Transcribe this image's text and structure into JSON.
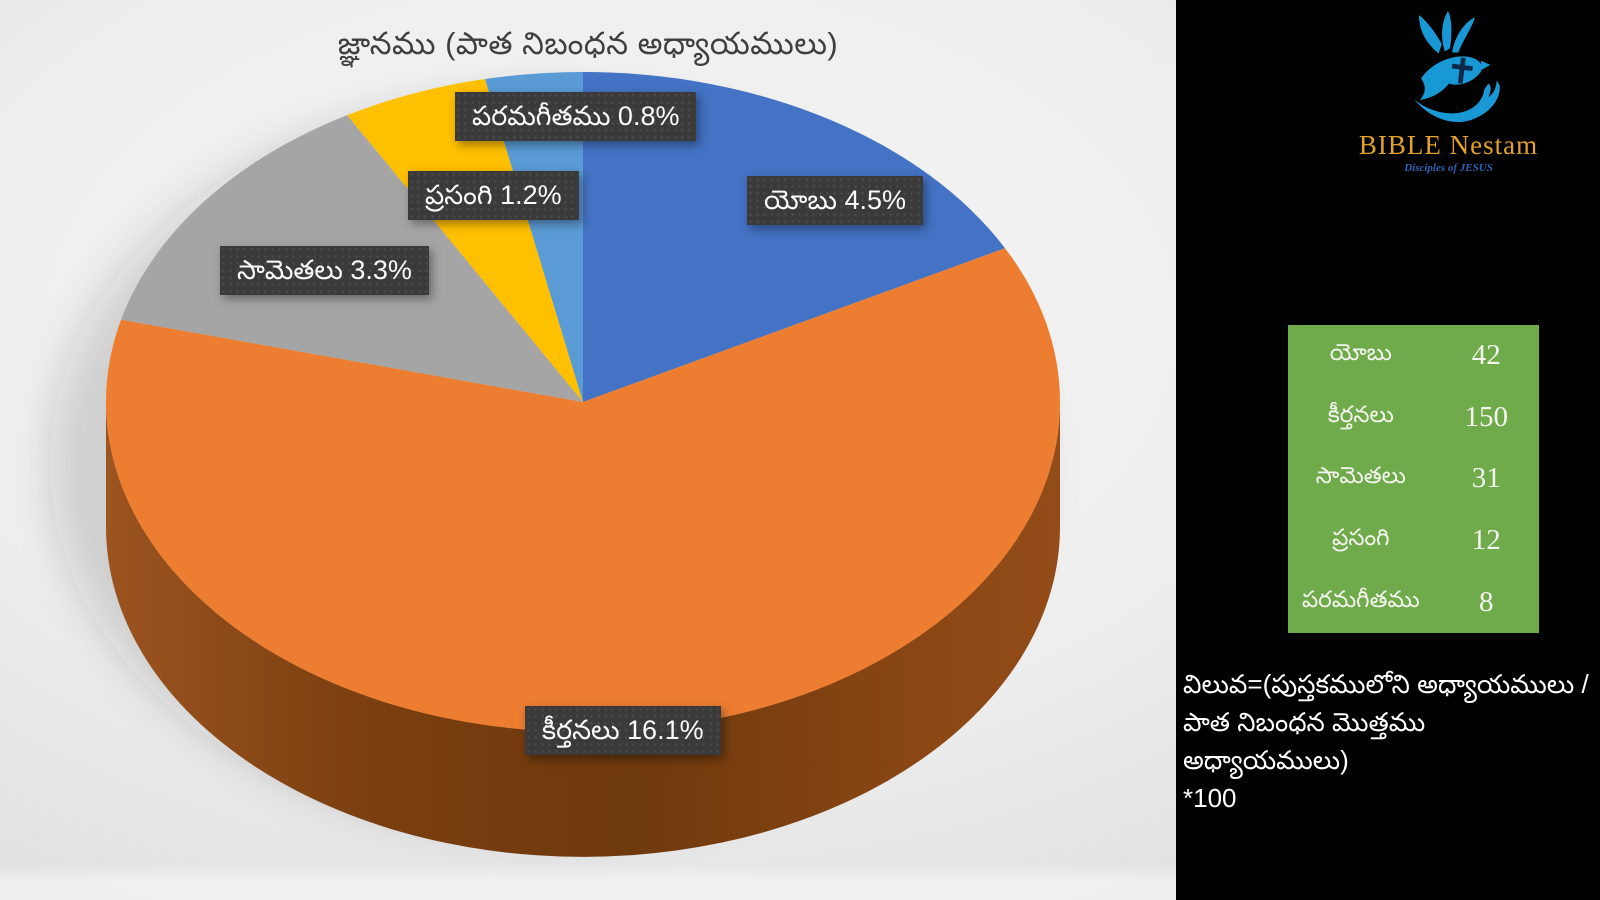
{
  "chart_data": {
    "type": "pie",
    "style": "3d",
    "title": "జ్ఞానము (పాత నిబంధన అధ్యాయములు)",
    "categories": [
      "యోబు",
      "కీర్తనలు",
      "సామెతలు",
      "ప్రసంగి",
      "పరమగీతము"
    ],
    "values": [
      42,
      150,
      31,
      12,
      8
    ],
    "percent_labels": [
      "4.5%",
      "16.1%",
      "3.3%",
      "1.2%",
      "0.8%"
    ],
    "callouts": [
      {
        "text": "యోబు 4.5%"
      },
      {
        "text": "కీర్తనలు 16.1%"
      },
      {
        "text": "సామెతలు 3.3%"
      },
      {
        "text": "ప్రసంగి 1.2%"
      },
      {
        "text": "పరమగీతము 0.8%"
      }
    ],
    "colors": [
      "#4472C4",
      "#ED7D31",
      "#A5A5A5",
      "#FFC000",
      "#5B9BD5"
    ],
    "rim_colors": [
      "#9C5420",
      "#7B3F10",
      "#6E390D",
      "#8A4614",
      "#934C18"
    ],
    "start_angle_deg": 0,
    "legend": "none",
    "label_box_color": "#3a3a3a"
  },
  "sidebar": {
    "logo": {
      "icon": "dove-cross-hand-logo",
      "title": "BIBLE Nestam",
      "subtitle": "Disciples of JESUS",
      "title_color": "#e2a127",
      "dove_color": "#1899d6",
      "cross_color": "#0a2a4a"
    },
    "table": {
      "background": "#6faa4b",
      "rows": [
        {
          "label": "యోబు",
          "value": "42"
        },
        {
          "label": "కీర్తనలు",
          "value": "150"
        },
        {
          "label": "సామెతలు",
          "value": "31"
        },
        {
          "label": "ప్రసంగి",
          "value": "12"
        },
        {
          "label": "పరమగీతము",
          "value": "8"
        }
      ]
    },
    "formula": {
      "line1": "విలువ=(పుస్తకములోని అధ్యాయములు /",
      "line2": "పాత నిబంధన మొత్తము అధ్యాయములు)",
      "line3": "*100"
    }
  }
}
